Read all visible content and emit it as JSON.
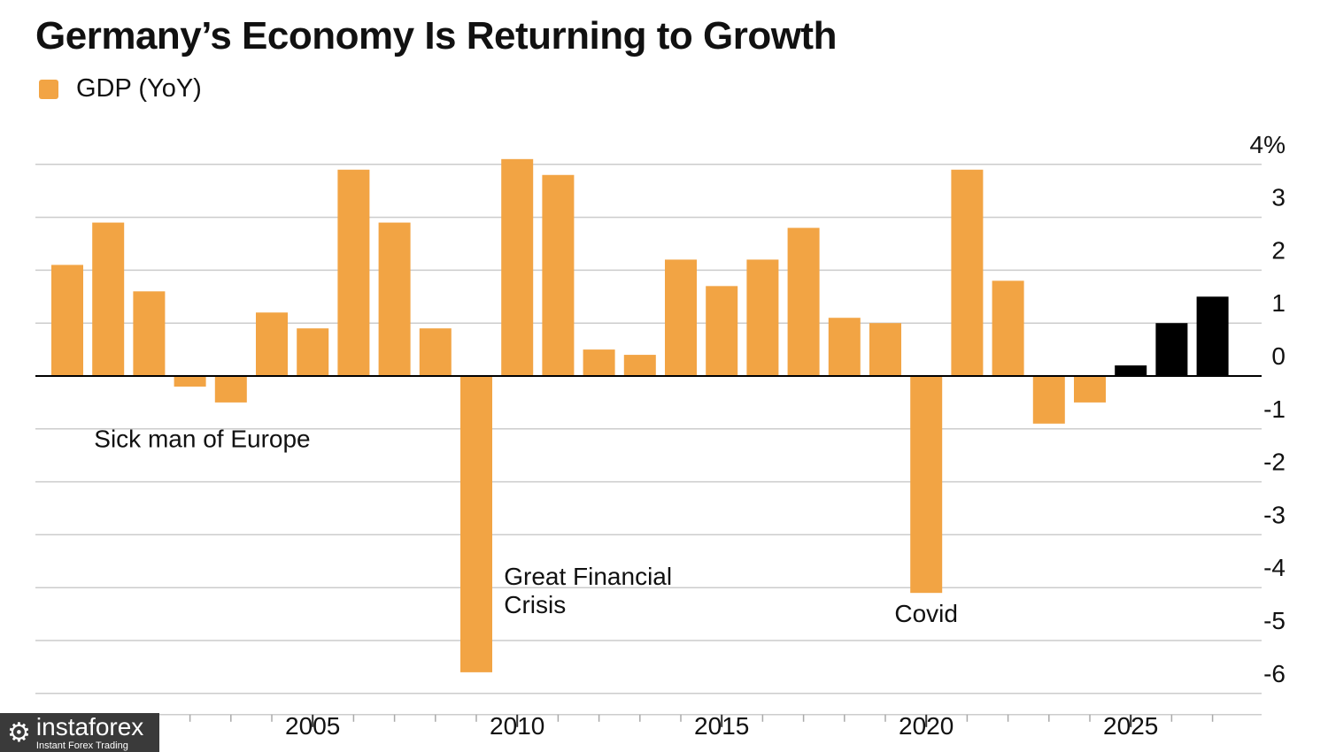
{
  "chart_data": {
    "type": "bar",
    "title": "Germany’s Economy Is Returning to Growth",
    "legend": [
      {
        "name": "GDP (YoY)",
        "color": "#f2a444"
      }
    ],
    "colors": {
      "actual": "#f2a444",
      "forecast": "#000000",
      "grid": "#cccccc",
      "axis": "#000000"
    },
    "ylim": [
      -6,
      4
    ],
    "yticks": [
      {
        "value": 4,
        "label": "4%"
      },
      {
        "value": 3,
        "label": "3"
      },
      {
        "value": 2,
        "label": "2"
      },
      {
        "value": 1,
        "label": "1"
      },
      {
        "value": 0,
        "label": "0"
      },
      {
        "value": -1,
        "label": "-1"
      },
      {
        "value": -2,
        "label": "-2"
      },
      {
        "value": -3,
        "label": "-3"
      },
      {
        "value": -4,
        "label": "-4"
      },
      {
        "value": -5,
        "label": "-5"
      },
      {
        "value": -6,
        "label": "-6"
      }
    ],
    "xticks": [
      2000,
      2005,
      2010,
      2015,
      2020,
      2025
    ],
    "bars": [
      {
        "year": 1999,
        "value": 2.1,
        "kind": "actual"
      },
      {
        "year": 2000,
        "value": 2.9,
        "kind": "actual"
      },
      {
        "year": 2001,
        "value": 1.6,
        "kind": "actual"
      },
      {
        "year": 2002,
        "value": -0.2,
        "kind": "actual"
      },
      {
        "year": 2003,
        "value": -0.5,
        "kind": "actual"
      },
      {
        "year": 2004,
        "value": 1.2,
        "kind": "actual"
      },
      {
        "year": 2005,
        "value": 0.9,
        "kind": "actual"
      },
      {
        "year": 2006,
        "value": 3.9,
        "kind": "actual"
      },
      {
        "year": 2007,
        "value": 2.9,
        "kind": "actual"
      },
      {
        "year": 2008,
        "value": 0.9,
        "kind": "actual"
      },
      {
        "year": 2009,
        "value": -5.6,
        "kind": "actual"
      },
      {
        "year": 2010,
        "value": 4.1,
        "kind": "actual"
      },
      {
        "year": 2011,
        "value": 3.8,
        "kind": "actual"
      },
      {
        "year": 2012,
        "value": 0.5,
        "kind": "actual"
      },
      {
        "year": 2013,
        "value": 0.4,
        "kind": "actual"
      },
      {
        "year": 2014,
        "value": 2.2,
        "kind": "actual"
      },
      {
        "year": 2015,
        "value": 1.7,
        "kind": "actual"
      },
      {
        "year": 2016,
        "value": 2.2,
        "kind": "actual"
      },
      {
        "year": 2017,
        "value": 2.8,
        "kind": "actual"
      },
      {
        "year": 2018,
        "value": 1.1,
        "kind": "actual"
      },
      {
        "year": 2019,
        "value": 1.0,
        "kind": "actual"
      },
      {
        "year": 2020,
        "value": -4.1,
        "kind": "actual"
      },
      {
        "year": 2021,
        "value": 3.9,
        "kind": "actual"
      },
      {
        "year": 2022,
        "value": 1.8,
        "kind": "actual"
      },
      {
        "year": 2023,
        "value": -0.9,
        "kind": "actual"
      },
      {
        "year": 2024,
        "value": -0.5,
        "kind": "actual"
      },
      {
        "year": 2025,
        "value": 0.2,
        "kind": "forecast"
      },
      {
        "year": 2026,
        "value": 1.0,
        "kind": "forecast"
      },
      {
        "year": 2027,
        "value": 1.5,
        "kind": "forecast"
      }
    ],
    "annotations": [
      {
        "lines": [
          "Sick man of Europe"
        ],
        "year": 2002.3,
        "value": -1.35
      },
      {
        "lines": [
          "Great Financial",
          "Crisis"
        ],
        "year": 2012.1,
        "value": -3.95
      },
      {
        "lines": [
          "Covid"
        ],
        "year": 2020.0,
        "value": -4.65
      }
    ]
  },
  "watermark": {
    "icon": "gear-icon",
    "glyph": "⚙",
    "name": "instaforex",
    "subtitle": "Instant Forex Trading"
  }
}
